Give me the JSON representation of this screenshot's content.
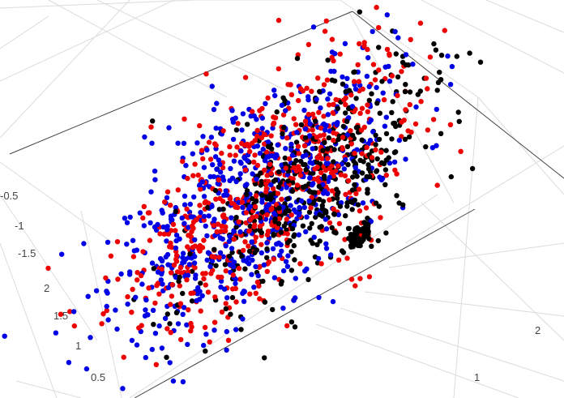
{
  "chart_data": {
    "type": "scatter3d",
    "title": "",
    "grid": true,
    "legend": "none",
    "axes": {
      "x": {
        "label": "",
        "ticks": [
          1,
          2
        ]
      },
      "y": {
        "label": "",
        "ticks": [
          0.5,
          1,
          1.5,
          2
        ]
      },
      "z": {
        "label": "",
        "ticks": [
          -1.5,
          -1,
          -0.5
        ]
      }
    },
    "series": [
      {
        "color": "#0000e6",
        "count": 650,
        "center": [
          -0.2,
          1.1,
          -1.0
        ],
        "spread": [
          0.55,
          0.55,
          0.45
        ]
      },
      {
        "color": "#ee0000",
        "count": 620,
        "center": [
          0.0,
          1.2,
          -0.9
        ],
        "spread": [
          0.55,
          0.55,
          0.45
        ]
      },
      {
        "color": "#000000",
        "count": 480,
        "center": [
          0.75,
          1.5,
          -0.75
        ],
        "spread": [
          0.45,
          0.45,
          0.4
        ]
      },
      {
        "color": "#000000",
        "count": 60,
        "center": [
          1.05,
          1.35,
          -1.55
        ],
        "spread": [
          0.05,
          0.05,
          0.05
        ]
      }
    ]
  }
}
